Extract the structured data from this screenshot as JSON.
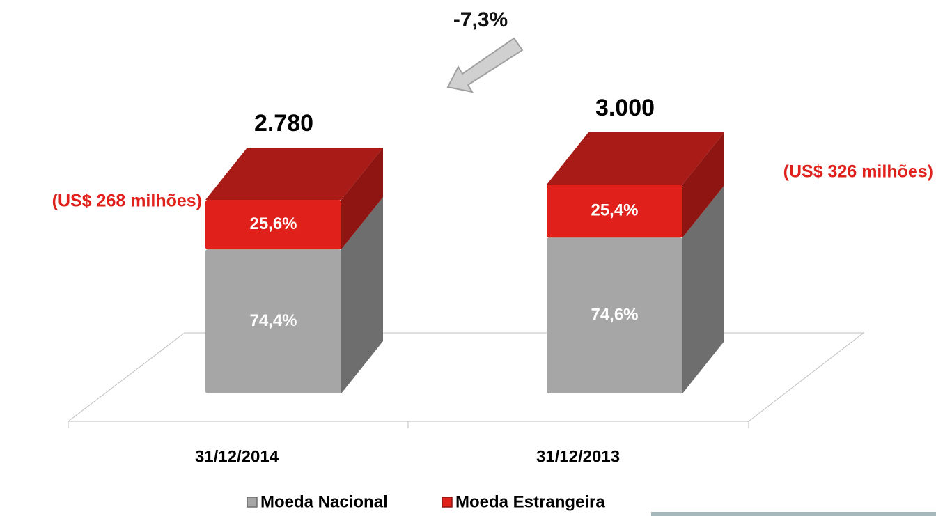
{
  "chart_data": {
    "type": "bar",
    "stacked": true,
    "categories": [
      "31/12/2014",
      "31/12/2013"
    ],
    "series": [
      {
        "name": "Moeda Nacional",
        "color": "#a6a6a6",
        "side_color": "#6e6e6e",
        "values": [
          74.4,
          74.6
        ],
        "value_labels": [
          "74,4%",
          "74,6%"
        ]
      },
      {
        "name": "Moeda Estrangeira",
        "color": "#e0201b",
        "side_color": "#8e1512",
        "top_color": "#a81b17",
        "values": [
          25.6,
          25.4
        ],
        "value_labels": [
          "25,6%",
          "25,4%"
        ]
      }
    ],
    "totals": {
      "values": [
        2780,
        3000
      ],
      "value_labels": [
        "2.780",
        "3.000"
      ]
    },
    "annotations": {
      "change": "-7,3%",
      "usd": [
        "(US$ 268 milhões)",
        "(US$ 326 milhões)"
      ]
    }
  }
}
